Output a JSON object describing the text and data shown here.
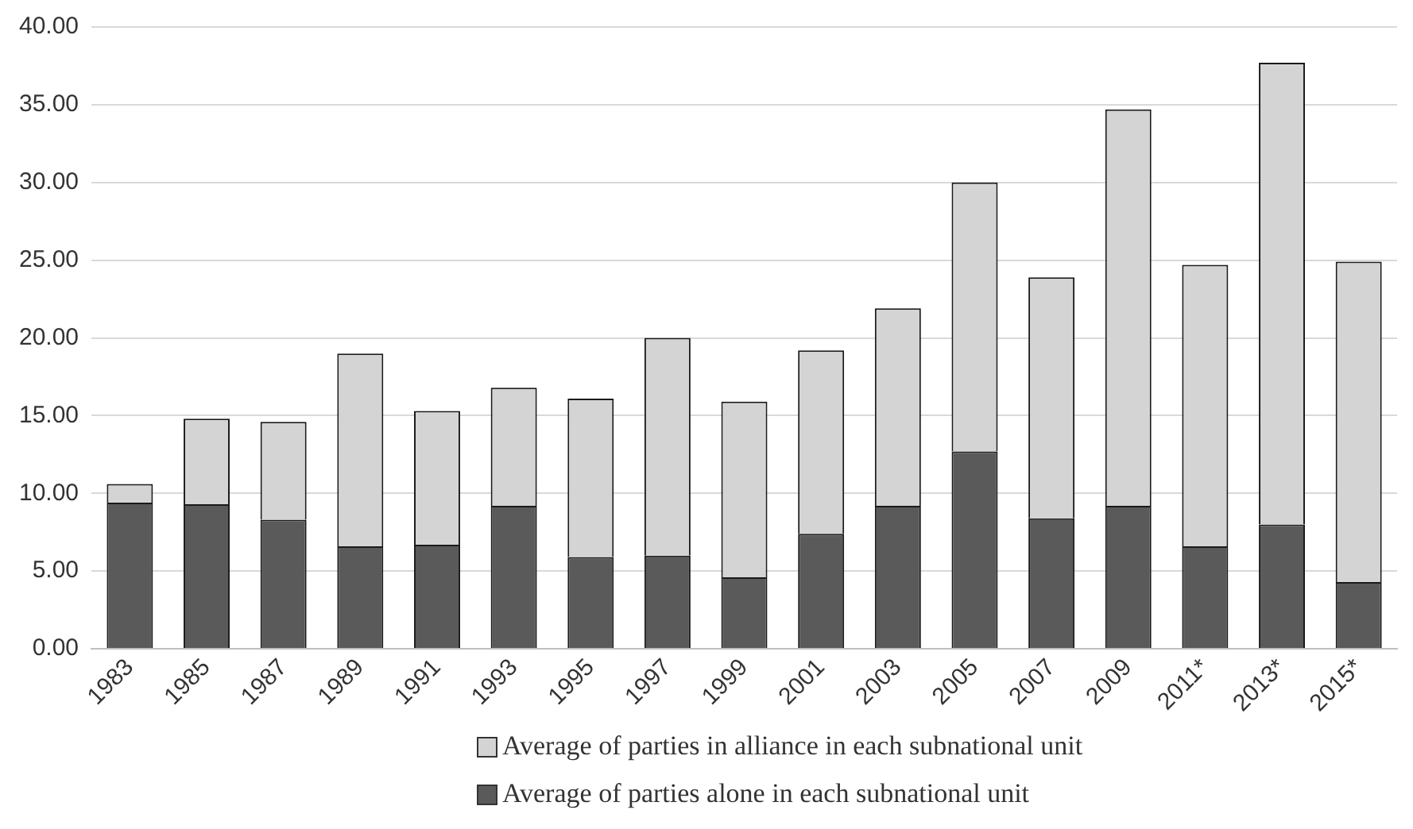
{
  "chart_data": {
    "type": "bar",
    "stacked": true,
    "categories": [
      "1983",
      "1985",
      "1987",
      "1989",
      "1991",
      "1993",
      "1995",
      "1997",
      "1999",
      "2001",
      "2003",
      "2005",
      "2007",
      "2009",
      "2011*",
      "2013*",
      "2015*"
    ],
    "series": [
      {
        "name": "Average of parties alone in each subnational unit",
        "color": "#5a5a5a",
        "values": [
          9.4,
          9.3,
          8.3,
          6.6,
          6.7,
          9.2,
          5.9,
          6.0,
          4.6,
          7.4,
          9.2,
          12.7,
          8.4,
          9.2,
          6.6,
          8.0,
          4.3
        ]
      },
      {
        "name": "Average of parties in alliance in each subnational unit",
        "color": "#d4d4d4",
        "values": [
          1.2,
          5.5,
          6.3,
          12.4,
          8.6,
          7.6,
          10.2,
          14.0,
          11.3,
          11.8,
          12.7,
          17.3,
          15.5,
          25.5,
          18.1,
          29.7,
          20.6
        ]
      }
    ],
    "ylim": [
      0,
      40
    ],
    "yticks": [
      {
        "value": 0,
        "label": "0.00"
      },
      {
        "value": 5,
        "label": "5.00"
      },
      {
        "value": 10,
        "label": "10.00"
      },
      {
        "value": 15,
        "label": "15.00"
      },
      {
        "value": 20,
        "label": "20.00"
      },
      {
        "value": 25,
        "label": "25.00"
      },
      {
        "value": 30,
        "label": "30.00"
      },
      {
        "value": 35,
        "label": "35.00"
      },
      {
        "value": 40,
        "label": "40.00"
      }
    ],
    "grid": "y",
    "legend": "bottom"
  }
}
